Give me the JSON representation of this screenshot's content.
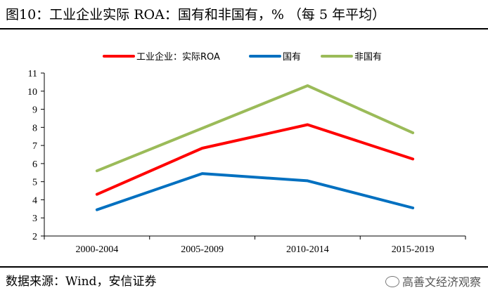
{
  "figure": {
    "title": "图10：工业企业实际 ROA：国有和非国有，% （每 5 年平均）",
    "source": "数据来源：Wind，安信证券",
    "watermark": "高善文经济观察"
  },
  "chart_data": {
    "type": "line",
    "title": "图10：工业企业实际 ROA：国有和非国有，% （每 5 年平均）",
    "xlabel": "",
    "ylabel": "",
    "categories": [
      "2000-2004",
      "2005-2009",
      "2010-2014",
      "2015-2019"
    ],
    "ylim": [
      2,
      11
    ],
    "yticks": [
      2,
      3,
      4,
      5,
      6,
      7,
      8,
      9,
      10,
      11
    ],
    "grid": false,
    "legend_position": "top-center",
    "series": [
      {
        "name": "工业企业：实际ROA",
        "color": "#ff0000",
        "values": [
          4.3,
          6.85,
          8.15,
          6.25
        ]
      },
      {
        "name": "国有",
        "color": "#0070c0",
        "values": [
          3.45,
          5.45,
          5.05,
          3.55
        ]
      },
      {
        "name": "非国有",
        "color": "#9bbb59",
        "values": [
          5.6,
          7.95,
          10.3,
          7.7
        ]
      }
    ]
  }
}
